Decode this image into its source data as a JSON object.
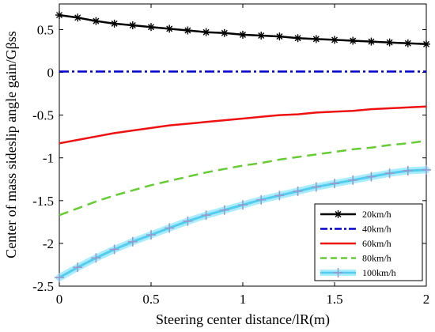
{
  "chart_data": {
    "type": "line",
    "title": "",
    "xlabel": "Steering center distance/lR(m)",
    "ylabel": "Center of mass sideslip angle gain/Gβss",
    "xlim": [
      0,
      2
    ],
    "ylim": [
      -2.5,
      0.8
    ],
    "xticks": [
      "0",
      "0.5",
      "1",
      "1.5",
      "2"
    ],
    "yticks": [
      "0.5",
      "0",
      "-0.5",
      "-1",
      "-1.5",
      "-2",
      "-2.5"
    ],
    "grid": false,
    "legend_position": "bottom-right",
    "x": [
      0,
      0.1,
      0.2,
      0.3,
      0.4,
      0.5,
      0.6,
      0.7,
      0.8,
      0.9,
      1.0,
      1.1,
      1.2,
      1.3,
      1.4,
      1.5,
      1.6,
      1.7,
      1.8,
      1.9,
      2.0
    ],
    "series": [
      {
        "name": "20km/h",
        "color": "#000000",
        "style": "solid",
        "marker": "asterisk",
        "values": [
          0.67,
          0.64,
          0.6,
          0.57,
          0.55,
          0.53,
          0.51,
          0.49,
          0.47,
          0.46,
          0.44,
          0.43,
          0.42,
          0.4,
          0.39,
          0.38,
          0.37,
          0.36,
          0.35,
          0.34,
          0.33
        ]
      },
      {
        "name": "40km/h",
        "color": "#0000cc",
        "style": "dashdot",
        "marker": "none",
        "values": [
          0.01,
          0.01,
          0.01,
          0.01,
          0.01,
          0.01,
          0.01,
          0.01,
          0.01,
          0.01,
          0.01,
          0.01,
          0.01,
          0.01,
          0.01,
          0.01,
          0.01,
          0.01,
          0.01,
          0.01,
          0.01
        ]
      },
      {
        "name": "60km/h",
        "color": "#ee1111",
        "style": "solid",
        "marker": "none",
        "values": [
          -0.83,
          -0.79,
          -0.75,
          -0.71,
          -0.68,
          -0.65,
          -0.62,
          -0.6,
          -0.58,
          -0.56,
          -0.54,
          -0.52,
          -0.5,
          -0.49,
          -0.47,
          -0.46,
          -0.45,
          -0.43,
          -0.42,
          -0.41,
          -0.4
        ]
      },
      {
        "name": "80km/h",
        "color": "#66cc33",
        "style": "dashed",
        "marker": "none",
        "values": [
          -1.67,
          -1.59,
          -1.51,
          -1.44,
          -1.38,
          -1.32,
          -1.27,
          -1.22,
          -1.17,
          -1.13,
          -1.09,
          -1.06,
          -1.02,
          -0.99,
          -0.96,
          -0.93,
          -0.9,
          -0.88,
          -0.85,
          -0.83,
          -0.8
        ]
      },
      {
        "name": "100km/h",
        "color": "#55ccee",
        "style": "solid",
        "marker": "plus",
        "values": [
          -2.4,
          -2.28,
          -2.17,
          -2.07,
          -1.98,
          -1.9,
          -1.82,
          -1.74,
          -1.67,
          -1.61,
          -1.55,
          -1.49,
          -1.44,
          -1.39,
          -1.34,
          -1.3,
          -1.26,
          -1.22,
          -1.18,
          -1.15,
          -1.14
        ]
      }
    ]
  }
}
